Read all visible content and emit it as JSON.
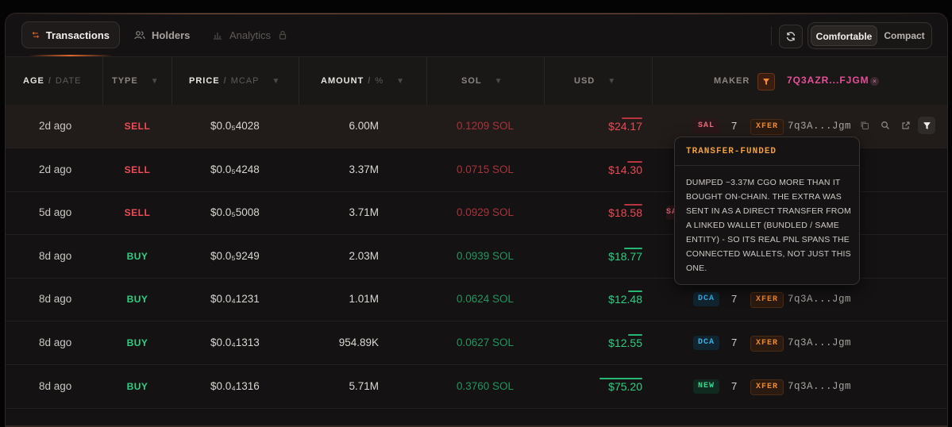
{
  "tabs": [
    {
      "label": "Transactions",
      "icon": "swap-arrows-icon",
      "active": true
    },
    {
      "label": "Holders",
      "icon": "users-icon"
    },
    {
      "label": "Analytics",
      "icon": "bar-chart-icon",
      "locked": true
    }
  ],
  "toolbar": {
    "refresh_icon": "refresh-icon",
    "density": [
      "Comfortable",
      "Compact"
    ],
    "density_selected": "Comfortable"
  },
  "columns": {
    "age": {
      "main": "AGE",
      "sub": "DATE"
    },
    "type": {
      "main": "TYPE"
    },
    "price": {
      "main": "PRICE",
      "sub": "MCAP"
    },
    "amount": {
      "main": "AMOUNT",
      "sub": "%"
    },
    "sol": {
      "main": "SOL"
    },
    "usd": {
      "main": "USD"
    },
    "maker": {
      "main": "MAKER",
      "filter_address": "7Q3AZR...FJGM"
    }
  },
  "rows": [
    {
      "age": "2d ago",
      "type": "SELL",
      "price": "$0.0₅4028",
      "amount": "6.00M",
      "sol": "0.1209 SOL",
      "usd": "$24.17",
      "usd_share": 0.48,
      "badge": "SAL",
      "count": "7",
      "xfer": "XFER",
      "maker": "7q3A...Jgm"
    },
    {
      "age": "2d ago",
      "type": "SELL",
      "price": "$0.0₅4248",
      "amount": "3.37M",
      "sol": "0.0715 SOL",
      "usd": "$14.30",
      "usd_share": 0.36,
      "badge": "",
      "count": "",
      "xfer": "",
      "maker": ""
    },
    {
      "age": "5d ago",
      "type": "SELL",
      "price": "$0.0₅5008",
      "amount": "3.71M",
      "sol": "0.0929 SOL",
      "usd": "$18.58",
      "usd_share": 0.42,
      "badge": "SA",
      "count": "",
      "xfer": "",
      "maker": ""
    },
    {
      "age": "8d ago",
      "type": "BUY",
      "price": "$0.0₅9249",
      "amount": "2.03M",
      "sol": "0.0939 SOL",
      "usd": "$18.77",
      "usd_share": 0.42,
      "badge": "",
      "count": "",
      "xfer": "",
      "maker": ""
    },
    {
      "age": "8d ago",
      "type": "BUY",
      "price": "$0.0₄1231",
      "amount": "1.01M",
      "sol": "0.0624 SOL",
      "usd": "$12.48",
      "usd_share": 0.33,
      "badge": "DCA",
      "count": "7",
      "xfer": "XFER",
      "maker": "7q3A...Jgm"
    },
    {
      "age": "8d ago",
      "type": "BUY",
      "price": "$0.0₄1313",
      "amount": "954.89K",
      "sol": "0.0627 SOL",
      "usd": "$12.55",
      "usd_share": 0.33,
      "badge": "DCA",
      "count": "7",
      "xfer": "XFER",
      "maker": "7q3A...Jgm"
    },
    {
      "age": "8d ago",
      "type": "BUY",
      "price": "$0.0₄1316",
      "amount": "5.71M",
      "sol": "0.3760 SOL",
      "usd": "$75.20",
      "usd_share": 1.0,
      "badge": "NEW",
      "count": "7",
      "xfer": "XFER",
      "maker": "7q3A...Jgm"
    }
  ],
  "tooltip": {
    "title": "TRANSFER-FUNDED",
    "body": "DUMPED ~3.37M CGO MORE THAN IT BOUGHT ON-CHAIN. THE EXTRA WAS SENT IN AS A DIRECT TRANSFER FROM A LINKED WALLET (BUNDLED / SAME ENTITY) - SO ITS REAL PNL SPANS THE CONNECTED WALLETS, NOT JUST THIS ONE."
  },
  "colors": {
    "sell": "#ef4c5a",
    "buy": "#2ecf83",
    "accent": "#e0662c",
    "maker": "#e64f9a"
  }
}
